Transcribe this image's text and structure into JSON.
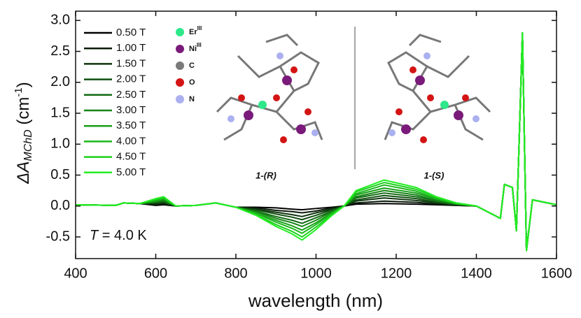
{
  "chart_data": {
    "type": "line",
    "ylabel_parts": [
      "ΔA",
      "MChD",
      " (cm",
      "-1",
      ")"
    ],
    "xlabel": "wavelength (nm)",
    "annotation_parts": [
      "T",
      " = 4.0 K"
    ],
    "inset": {
      "legend": [
        {
          "element": "Er",
          "sup": "III",
          "color": "#2ee88a"
        },
        {
          "element": "Ni",
          "sup": "III",
          "color": "#7a1a7a"
        },
        {
          "element": "C",
          "color": "#7a7a7a"
        },
        {
          "element": "O",
          "color": "#d41414"
        },
        {
          "element": "N",
          "color": "#aab0f0"
        }
      ],
      "labels": [
        "1-(R)",
        "1-(S)"
      ]
    },
    "xlim": [
      400,
      1600
    ],
    "ylim": [
      -0.85,
      3.15
    ],
    "xticks": [
      400,
      600,
      800,
      1000,
      1200,
      1400,
      1600
    ],
    "yticks": [
      {
        "value": -0.5,
        "label": "-0.5"
      },
      {
        "value": 0,
        "label": "0.0"
      },
      0.5,
      {
        "value": 1,
        "label": "1.0"
      },
      1.5,
      {
        "value": 2,
        "label": "2.0"
      },
      2.5,
      {
        "value": 3,
        "label": "3.0"
      }
    ],
    "x": [
      400,
      500,
      520,
      560,
      600,
      620,
      650,
      700,
      750,
      800,
      850,
      900,
      940,
      965,
      1000,
      1040,
      1070,
      1100,
      1170,
      1250,
      1300,
      1350,
      1400,
      1460,
      1470,
      1490,
      1500,
      1515,
      1525,
      1540,
      1600
    ],
    "series": [
      {
        "name": "0.50 T",
        "color": "#000000",
        "values": [
          0.02,
          0.01,
          0.05,
          0.04,
          0.01,
          0.02,
          0,
          0.01,
          0.05,
          -0.02,
          -0.02,
          -0.03,
          -0.05,
          -0.06,
          -0.04,
          -0.02,
          0,
          0.03,
          0.04,
          0.03,
          0.02,
          0.01,
          0,
          -0.2,
          0.35,
          0.3,
          -0.4,
          2.8,
          -0.72,
          0.1,
          0.02
        ]
      },
      {
        "name": "1.00 T",
        "color": "#0a1a0a",
        "values": [
          0.02,
          0.01,
          0.05,
          0.04,
          0.02,
          0.03,
          0,
          0.01,
          0.05,
          -0.02,
          -0.03,
          -0.07,
          -0.09,
          -0.11,
          -0.08,
          -0.03,
          0,
          0.05,
          0.08,
          0.06,
          0.03,
          0.01,
          0,
          -0.2,
          0.35,
          0.3,
          -0.4,
          2.8,
          -0.72,
          0.1,
          0.02
        ]
      },
      {
        "name": "1.50 T",
        "color": "#0d330d",
        "values": [
          0.02,
          0.01,
          0.05,
          0.04,
          0.04,
          0.05,
          0,
          0.01,
          0.05,
          -0.02,
          -0.05,
          -0.1,
          -0.14,
          -0.17,
          -0.11,
          -0.05,
          0,
          0.08,
          0.13,
          0.09,
          0.05,
          0.02,
          0,
          -0.2,
          0.35,
          0.3,
          -0.4,
          2.8,
          -0.72,
          0.1,
          0.02
        ]
      },
      {
        "name": "2.00 T",
        "color": "#105010",
        "values": [
          0.02,
          0.01,
          0.05,
          0.04,
          0.05,
          0.06,
          0,
          0.01,
          0.05,
          -0.02,
          -0.06,
          -0.13,
          -0.18,
          -0.22,
          -0.15,
          -0.06,
          0,
          0.1,
          0.17,
          0.12,
          0.06,
          0.02,
          0,
          -0.2,
          0.35,
          0.3,
          -0.4,
          2.8,
          -0.72,
          0.1,
          0.02
        ]
      },
      {
        "name": "2.50 T",
        "color": "#126a12",
        "values": [
          0.02,
          0.01,
          0.05,
          0.04,
          0.06,
          0.08,
          0,
          0.01,
          0.05,
          -0.02,
          -0.08,
          -0.17,
          -0.23,
          -0.28,
          -0.19,
          -0.08,
          0,
          0.13,
          0.21,
          0.15,
          0.08,
          0.03,
          0,
          -0.2,
          0.35,
          0.3,
          -0.4,
          2.8,
          -0.72,
          0.1,
          0.02
        ]
      },
      {
        "name": "3.00 T",
        "color": "#158515",
        "values": [
          0.02,
          0.01,
          0.05,
          0.04,
          0.07,
          0.09,
          0,
          0.01,
          0.05,
          -0.02,
          -0.09,
          -0.2,
          -0.27,
          -0.33,
          -0.23,
          -0.09,
          0,
          0.15,
          0.25,
          0.18,
          0.09,
          0.03,
          0,
          -0.2,
          0.35,
          0.3,
          -0.4,
          2.8,
          -0.72,
          0.1,
          0.02
        ]
      },
      {
        "name": "3.50 T",
        "color": "#18a018",
        "values": [
          0.02,
          0.01,
          0.05,
          0.04,
          0.08,
          0.11,
          0,
          0.01,
          0.05,
          -0.02,
          -0.11,
          -0.23,
          -0.32,
          -0.39,
          -0.27,
          -0.11,
          0,
          0.18,
          0.29,
          0.21,
          0.11,
          0.04,
          0,
          -0.2,
          0.35,
          0.3,
          -0.4,
          2.8,
          -0.72,
          0.1,
          0.02
        ]
      },
      {
        "name": "4.00 T",
        "color": "#1ab81a",
        "values": [
          0.02,
          0.01,
          0.05,
          0.04,
          0.1,
          0.12,
          0,
          0.01,
          0.05,
          -0.02,
          -0.12,
          -0.26,
          -0.36,
          -0.44,
          -0.3,
          -0.12,
          0,
          0.2,
          0.34,
          0.24,
          0.12,
          0.04,
          0,
          -0.2,
          0.35,
          0.3,
          -0.4,
          2.8,
          -0.72,
          0.1,
          0.02
        ]
      },
      {
        "name": "4.50 T",
        "color": "#1dd01d",
        "values": [
          0.02,
          0.01,
          0.05,
          0.04,
          0.11,
          0.14,
          0,
          0.01,
          0.05,
          -0.02,
          -0.14,
          -0.3,
          -0.41,
          -0.5,
          -0.34,
          -0.14,
          0,
          0.23,
          0.38,
          0.27,
          0.14,
          0.05,
          0,
          -0.2,
          0.35,
          0.3,
          -0.4,
          2.8,
          -0.72,
          0.1,
          0.02
        ]
      },
      {
        "name": "5.00 T",
        "color": "#22ee22",
        "values": [
          0.02,
          0.01,
          0.05,
          0.04,
          0.12,
          0.15,
          0,
          0.01,
          0.05,
          -0.02,
          -0.15,
          -0.33,
          -0.45,
          -0.55,
          -0.38,
          -0.15,
          0,
          0.25,
          0.42,
          0.3,
          0.15,
          0.05,
          0,
          -0.2,
          0.35,
          0.3,
          -0.4,
          2.8,
          -0.72,
          0.1,
          0.02
        ]
      }
    ]
  }
}
